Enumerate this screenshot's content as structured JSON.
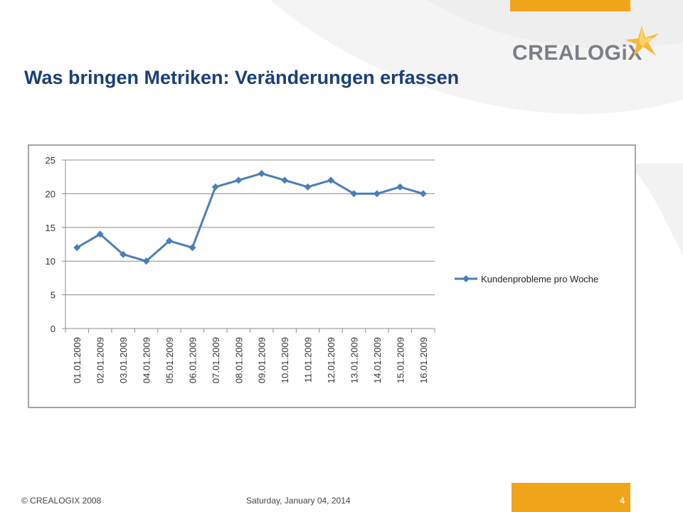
{
  "slide": {
    "title": "Was bringen Metriken: Veränderungen erfassen",
    "logo_text": "CREALOGiX",
    "footer_copyright": "© CREALOGIX  2008",
    "footer_date": "Saturday, January 04, 2014",
    "page_number": "4"
  },
  "colors": {
    "accent": "#f0a41a",
    "title": "#1b3f7a",
    "series": "#4a7ebb",
    "logo_gray": "#7a7f87"
  },
  "chart_data": {
    "type": "line",
    "categories": [
      "01.01.2009",
      "02.01.2009",
      "03.01.2009",
      "04.01.2009",
      "05.01.2009",
      "06.01.2009",
      "07.01.2009",
      "08.01.2009",
      "09.01.2009",
      "10.01.2009",
      "11.01.2009",
      "12.01.2009",
      "13.01.2009",
      "14.01.2009",
      "15.01.2009",
      "16.01.2009"
    ],
    "series": [
      {
        "name": "Kundenprobleme pro Woche",
        "values": [
          12,
          14,
          11,
          10,
          13,
          12,
          21,
          22,
          23,
          22,
          21,
          22,
          20,
          20,
          21,
          20
        ]
      }
    ],
    "yticks": [
      "0",
      "5",
      "10",
      "15",
      "20",
      "25"
    ],
    "ylim": [
      0,
      25
    ],
    "grid": true,
    "legend": "right",
    "marker": "diamond"
  }
}
